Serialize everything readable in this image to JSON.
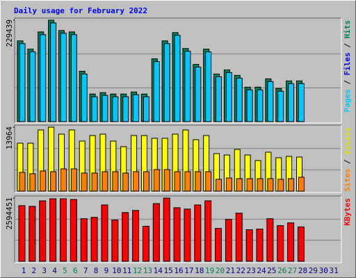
{
  "title": "Daily usage for February 2022",
  "chart_data": [
    {
      "type": "bar",
      "ylim": [
        0,
        229439
      ],
      "yticks": [
        229439
      ],
      "legend_separator": "/",
      "legend": [
        {
          "name": "Pages",
          "color": "#00c8ff"
        },
        {
          "name": "Files",
          "color": "#0000ff"
        },
        {
          "name": "Hits",
          "color": "#00805c"
        }
      ],
      "series": [
        {
          "name": "Hits",
          "color": "#00805c",
          "values": [
            182600,
            163900,
            202900,
            229439,
            206000,
            202900,
            113900,
            62400,
            65600,
            62400,
            62400,
            67100,
            62400,
            142000,
            182600,
            201300,
            165400,
            129500,
            163900,
            107700,
            117100,
            104600,
            78000,
            78000,
            96800,
            74900,
            92100,
            92100,
            null,
            null,
            null
          ]
        },
        {
          "name": "Pages",
          "color": "#00c8ff",
          "values": [
            176400,
            157700,
            196700,
            223200,
            199800,
            196700,
            107700,
            56200,
            59400,
            56200,
            56200,
            60900,
            56200,
            135800,
            176400,
            195100,
            159200,
            123300,
            157700,
            101500,
            110900,
            98400,
            71800,
            71800,
            90600,
            68700,
            85900,
            85900,
            null,
            null,
            null
          ]
        }
      ]
    },
    {
      "type": "bar",
      "ylim": [
        0,
        13964
      ],
      "yticks": [
        13964
      ],
      "legend_separator": "/",
      "legend": [
        {
          "name": "Sites",
          "color": "#ff8000"
        },
        {
          "name": "Visits",
          "color": "#e0e000"
        }
      ],
      "series": [
        {
          "name": "Visits",
          "color": "#ffff00",
          "values": [
            10470,
            10470,
            13360,
            13964,
            12450,
            13360,
            10930,
            12140,
            12450,
            10930,
            9710,
            12140,
            12140,
            11540,
            11540,
            12450,
            13360,
            11230,
            12140,
            8200,
            7890,
            9110,
            7890,
            6680,
            8500,
            7290,
            7590,
            7440,
            null,
            null,
            null
          ]
        },
        {
          "name": "Sites",
          "color": "#ff8000",
          "values": [
            4100,
            3800,
            4400,
            4250,
            4860,
            4860,
            3950,
            3950,
            4250,
            4250,
            3950,
            4250,
            4250,
            4710,
            4710,
            4250,
            4250,
            4250,
            4250,
            2580,
            2880,
            2730,
            2730,
            2730,
            2730,
            2580,
            2730,
            3040,
            null,
            null,
            null
          ]
        }
      ]
    },
    {
      "type": "bar",
      "ylim": [
        0,
        2594451
      ],
      "yticks": [
        2594451
      ],
      "legend": [
        {
          "name": "KBytes",
          "color": "#ff0000"
        }
      ],
      "categories": [
        "1",
        "2",
        "3",
        "4",
        "5",
        "6",
        "7",
        "8",
        "9",
        "10",
        "11",
        "12",
        "13",
        "14",
        "15",
        "16",
        "17",
        "18",
        "19",
        "20",
        "21",
        "22",
        "23",
        "24",
        "25",
        "26",
        "27",
        "28",
        "29",
        "30",
        "31"
      ],
      "category_colors": [
        "#000080",
        "#000080",
        "#000080",
        "#000080",
        "#00805c",
        "#00805c",
        "#000080",
        "#000080",
        "#000080",
        "#000080",
        "#000080",
        "#00805c",
        "#00805c",
        "#000080",
        "#000080",
        "#000080",
        "#000080",
        "#000080",
        "#00805c",
        "#00805c",
        "#000080",
        "#000080",
        "#000080",
        "#000080",
        "#000080",
        "#00805c",
        "#00805c",
        "#000080",
        "#000080",
        "#000080",
        "#000080"
      ],
      "series": [
        {
          "name": "KBytes",
          "color": "#ff0000",
          "values": [
            2284000,
            2256000,
            2481600,
            2566200,
            2566200,
            2538000,
            1748400,
            1804800,
            2312400,
            1692000,
            2002200,
            2086800,
            1438200,
            2368800,
            2594451,
            2199600,
            2143200,
            2312400,
            2481600,
            1353600,
            1720200,
            1974000,
            1297200,
            1325400,
            1748400,
            1466400,
            1579200,
            1410000,
            null,
            null,
            null
          ]
        }
      ]
    }
  ]
}
